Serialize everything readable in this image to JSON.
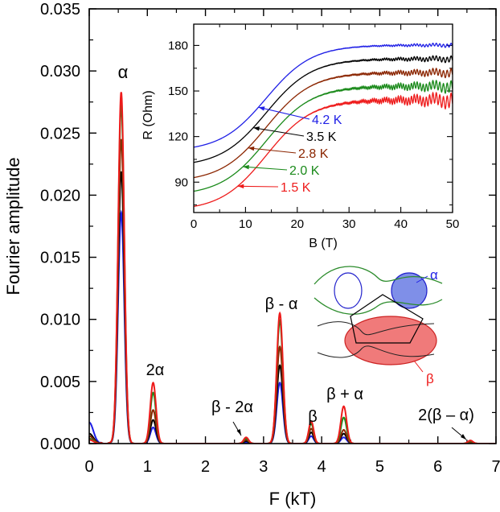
{
  "colors": {
    "T4_2": "#1f1fe6",
    "T3_5": "#000000",
    "T2_8": "#8b2500",
    "T2_0": "#1a8a1a",
    "T1_5": "#ee1b1b",
    "alpha_pocket_fill": "#7f8fe8",
    "beta_pocket_fill": "#f07a7a"
  },
  "chart_data": [
    {
      "type": "line",
      "title": "",
      "xlabel": "F (kT)",
      "ylabel": "Fourier amplitude",
      "xlim": [
        0,
        7
      ],
      "ylim": [
        0,
        0.035
      ],
      "xticks": [
        "0",
        "1",
        "2",
        "3",
        "4",
        "5",
        "6",
        "7"
      ],
      "yticks": [
        "0.000",
        "0.005",
        "0.010",
        "0.015",
        "0.020",
        "0.025",
        "0.030",
        "0.035"
      ],
      "peak_labels": [
        {
          "text": "α",
          "f": 0.55
        },
        {
          "text": "2α",
          "f": 1.1
        },
        {
          "text": "β - 2α",
          "f": 2.7
        },
        {
          "text": "β - α",
          "f": 3.28
        },
        {
          "text": "β",
          "f": 3.82
        },
        {
          "text": "β + α",
          "f": 4.38
        },
        {
          "text": "2(β – α)",
          "f": 6.56
        }
      ],
      "peak_positions": [
        0.55,
        1.1,
        2.7,
        3.28,
        3.82,
        4.38,
        6.56
      ],
      "series": [
        {
          "name": "4.2 K",
          "color_key": "T4_2",
          "peaks": [
            0.0186,
            0.0013,
            0.0001,
            0.0049,
            0.0006,
            0.0005,
            5e-05
          ],
          "low_f": 0.0017
        },
        {
          "name": "3.5 K",
          "color_key": "T3_5",
          "peaks": [
            0.0219,
            0.0019,
            0.0002,
            0.0063,
            0.0009,
            0.0008,
            8e-05
          ],
          "low_f": 0.0008
        },
        {
          "name": "2.8 K",
          "color_key": "T2_8",
          "peaks": [
            0.0245,
            0.0027,
            0.0003,
            0.0078,
            0.0012,
            0.0011,
            0.0001
          ],
          "low_f": 0.0006
        },
        {
          "name": "2.0 K",
          "color_key": "T2_0",
          "peaks": [
            0.0273,
            0.0041,
            0.0004,
            0.0099,
            0.0016,
            0.0021,
            0.0002
          ],
          "low_f": 0.0004
        },
        {
          "name": "1.5 K",
          "color_key": "T1_5",
          "peaks": [
            0.0283,
            0.0049,
            0.0005,
            0.0105,
            0.0018,
            0.003,
            0.00025
          ],
          "low_f": 0.0003
        }
      ]
    },
    {
      "type": "line",
      "title": "",
      "xlabel": "B (T)",
      "ylabel": "R (Ohm)",
      "xlim": [
        0,
        50
      ],
      "ylim": [
        70,
        194
      ],
      "xticks": [
        "0",
        "10",
        "20",
        "30",
        "40",
        "50"
      ],
      "yticks": [
        "90",
        "120",
        "150",
        "180"
      ],
      "osc_period_inv_kT": 3.28,
      "series": [
        {
          "name": "4.2 K",
          "color_key": "T4_2",
          "r0": 113,
          "r_sat": 183,
          "osc_amp": 0.5
        },
        {
          "name": "3.5 K",
          "color_key": "T3_5",
          "r0": 103,
          "r_sat": 174,
          "osc_amp": 0.8
        },
        {
          "name": "2.8 K",
          "color_key": "T2_8",
          "r0": 93,
          "r_sat": 165,
          "osc_amp": 1.1
        },
        {
          "name": "2.0 K",
          "color_key": "T2_0",
          "r0": 84,
          "r_sat": 156,
          "osc_amp": 1.5
        },
        {
          "name": "1.5 K",
          "color_key": "T1_5",
          "r0": 74,
          "r_sat": 147,
          "osc_amp": 1.9
        }
      ],
      "legend": [
        {
          "label": "4.2 K",
          "color_key": "T4_2",
          "at_B": 12.5
        },
        {
          "label": "3.5 K",
          "color_key": "T3_5",
          "at_B": 11.5
        },
        {
          "label": "2.8 K",
          "color_key": "T2_8",
          "at_B": 10.5
        },
        {
          "label": "2.0 K",
          "color_key": "T2_0",
          "at_B": 9.5
        },
        {
          "label": "1.5 K",
          "color_key": "T1_5",
          "at_B": 8.5
        }
      ]
    }
  ],
  "fermi_surface": {
    "alpha_label": "α",
    "beta_label": "β"
  }
}
